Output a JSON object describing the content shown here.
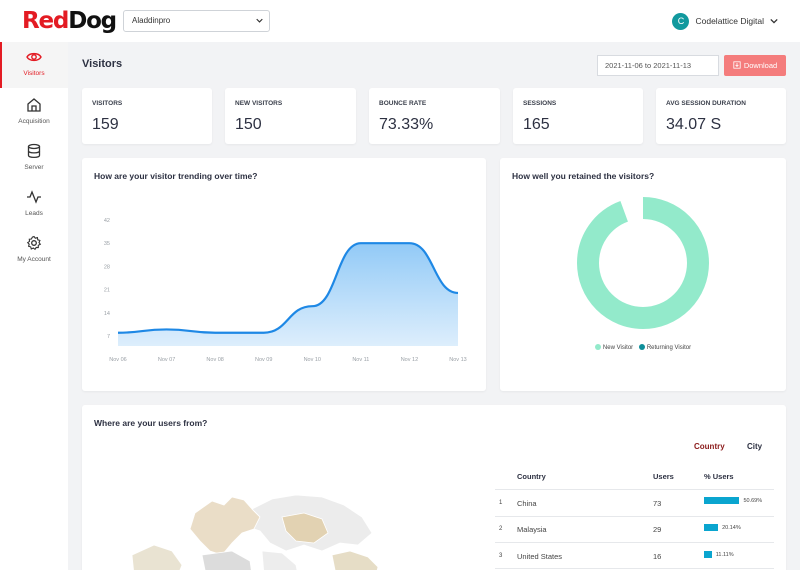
{
  "header": {
    "logo_red": "Red",
    "logo_dark": "Dog",
    "project": "Aladdinpro",
    "account_initial": "C",
    "account_name": "Codelattice Digital"
  },
  "sidebar": {
    "items": [
      {
        "label": "Visitors",
        "icon": "eye-icon",
        "active": true
      },
      {
        "label": "Acquisition",
        "icon": "home-icon"
      },
      {
        "label": "Server",
        "icon": "database-icon"
      },
      {
        "label": "Leads",
        "icon": "activity-icon"
      },
      {
        "label": "My Account",
        "icon": "gear-icon"
      }
    ]
  },
  "page": {
    "title": "Visitors",
    "date_range": "2021-11-06 to 2021-11-13",
    "download_label": "Download"
  },
  "stats": [
    {
      "label": "VISITORS",
      "value": "159"
    },
    {
      "label": "NEW VISITORS",
      "value": "150"
    },
    {
      "label": "BOUNCE RATE",
      "value": "73.33%"
    },
    {
      "label": "SESSIONS",
      "value": "165"
    },
    {
      "label": "AVG SESSION DURATION",
      "value": "34.07 S"
    }
  ],
  "trend": {
    "title": "How are your visitor trending over time?"
  },
  "retention": {
    "title": "How well you retained the visitors?",
    "legend_new": "New Visitor",
    "legend_returning": "Returning Visitor"
  },
  "geo": {
    "title": "Where are your users from?",
    "tab_country": "Country",
    "tab_city": "City",
    "col_country": "Country",
    "col_users": "Users",
    "col_pct": "% Users",
    "rows": [
      {
        "rank": "1",
        "country": "China",
        "users": "73",
        "pct": "50.69%",
        "pct_value": 50.69
      },
      {
        "rank": "2",
        "country": "Malaysia",
        "users": "29",
        "pct": "20.14%",
        "pct_value": 20.14
      },
      {
        "rank": "3",
        "country": "United States",
        "users": "16",
        "pct": "11.11%",
        "pct_value": 11.11
      }
    ]
  },
  "colors": {
    "brand_red": "#e31b23",
    "line": "#1e88e5",
    "new_visitor": "#93eacb",
    "returning_visitor": "#0e8f9a",
    "bar": "#0aa5cf"
  },
  "chart_data": [
    {
      "type": "area",
      "title": "How are your visitor trending over time?",
      "x": [
        "Nov 06",
        "Nov 07",
        "Nov 08",
        "Nov 09",
        "Nov 10",
        "Nov 11",
        "Nov 12",
        "Nov 13"
      ],
      "yticks": [
        7,
        14,
        21,
        28,
        35,
        42
      ],
      "ylim": [
        4,
        42
      ],
      "series": [
        {
          "values": [
            8,
            9,
            8,
            8,
            16,
            35,
            35,
            20
          ]
        }
      ]
    },
    {
      "type": "pie",
      "title": "How well you retained the visitors?",
      "labels": [
        "New Visitor",
        "Returning Visitor"
      ],
      "values": [
        150,
        9
      ],
      "legend": "bottom"
    }
  ]
}
